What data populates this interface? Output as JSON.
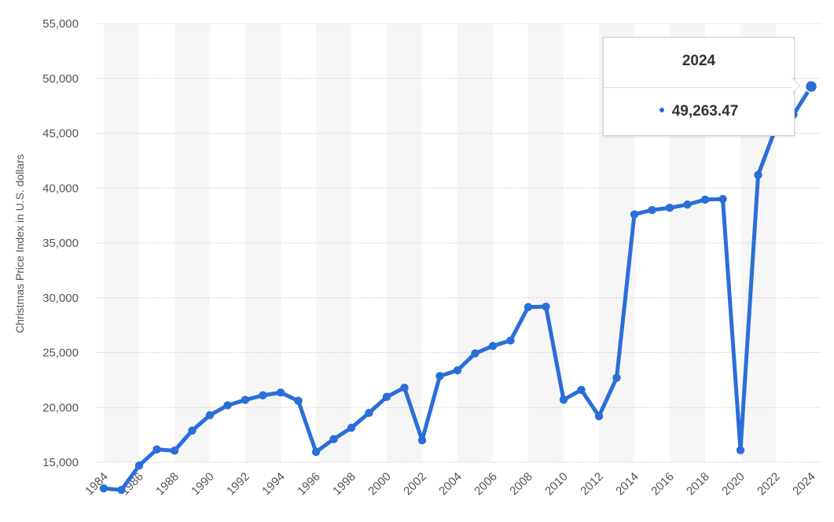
{
  "chart_data": {
    "type": "line",
    "title": "",
    "xlabel": "",
    "ylabel": "Christmas Price Index in U.S. dollars",
    "ylim": [
      15000,
      55000
    ],
    "y_ticks": [
      "15,000",
      "20,000",
      "25,000",
      "30,000",
      "35,000",
      "40,000",
      "45,000",
      "50,000",
      "55,000"
    ],
    "x_ticks": [
      "1984",
      "1986",
      "1988",
      "1990",
      "1992",
      "1994",
      "1996",
      "1998",
      "2000",
      "2002",
      "2004",
      "2006",
      "2008",
      "2010",
      "2012",
      "2014",
      "2016",
      "2018",
      "2020",
      "2022",
      "2024"
    ],
    "grid": true,
    "line_color": "#2a6ed8",
    "x": [
      1984,
      1985,
      1986,
      1987,
      1988,
      1989,
      1990,
      1991,
      1992,
      1993,
      1994,
      1995,
      1996,
      1997,
      1998,
      1999,
      2000,
      2001,
      2002,
      2003,
      2004,
      2005,
      2006,
      2007,
      2008,
      2009,
      2010,
      2011,
      2012,
      2013,
      2014,
      2015,
      2016,
      2017,
      2018,
      2019,
      2020,
      2021,
      2022,
      2023,
      2024
    ],
    "series": [
      {
        "values": [
          12623,
          12481,
          14698,
          16168,
          16063,
          17886,
          19290,
          20190,
          20685,
          21103,
          21357,
          20600,
          15941,
          17110,
          18140,
          19500,
          20960,
          21800,
          17000,
          22860,
          23380,
          24930,
          25600,
          26100,
          29150,
          29190,
          20700,
          21600,
          19200,
          22700,
          37600,
          38000,
          38200,
          38500,
          38950,
          39000,
          16100,
          41200,
          45500,
          46700,
          49263.47
        ]
      }
    ],
    "tooltip": {
      "year": "2024",
      "value": "49,263.47"
    }
  }
}
